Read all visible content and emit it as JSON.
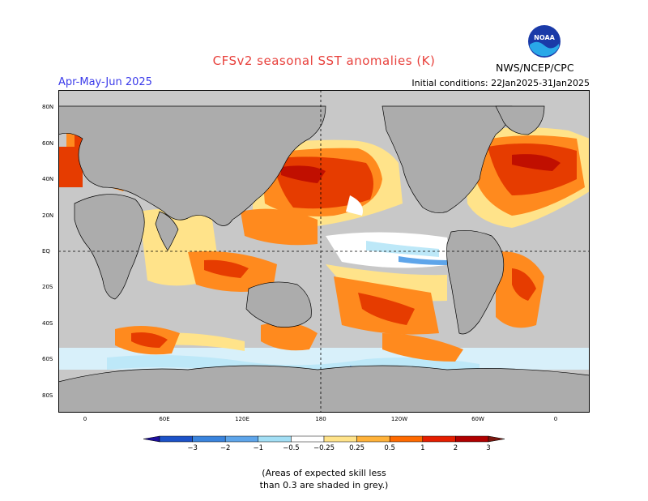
{
  "header": {
    "title": "CFSv2 seasonal SST anomalies (K)",
    "season": "Apr-May-Jun 2025",
    "initial_conditions": "Initial conditions: 22Jan2025-31Jan2025",
    "agency": "NWS/NCEP/CPC",
    "logo_text": "NOAA"
  },
  "axes": {
    "lat_labels": [
      "80N",
      "60N",
      "40N",
      "20N",
      "EQ",
      "20S",
      "40S",
      "60S",
      "80S"
    ],
    "lon_labels": [
      "0",
      "60E",
      "120E",
      "180",
      "120W",
      "60W",
      "0"
    ]
  },
  "colorbar": {
    "ticks": [
      "−3",
      "−2",
      "−1",
      "−0.5",
      "−0.25",
      "0.25",
      "0.5",
      "1",
      "2",
      "3"
    ],
    "colors": [
      "#1d0f9e",
      "#1c52c8",
      "#3a84dd",
      "#5ea5ea",
      "#a3dff5",
      "#ffffff",
      "#ffe38a",
      "#ffb23a",
      "#ff6a00",
      "#e51e00",
      "#b00000",
      "#7a1810"
    ]
  },
  "colors": {
    "land": "#acacac",
    "ocean_grey": "#c8c8c8",
    "warm_light": "#ffe38a",
    "warm_mid": "#ff8a1e",
    "warm_strong": "#e63c00",
    "warm_extreme": "#c00f00",
    "cool_light": "#bde8f8",
    "cool_mid": "#5ea5ea"
  },
  "note": {
    "line1": "(Areas of expected skill less",
    "line2": "than 0.3 are shaded in grey.)"
  }
}
